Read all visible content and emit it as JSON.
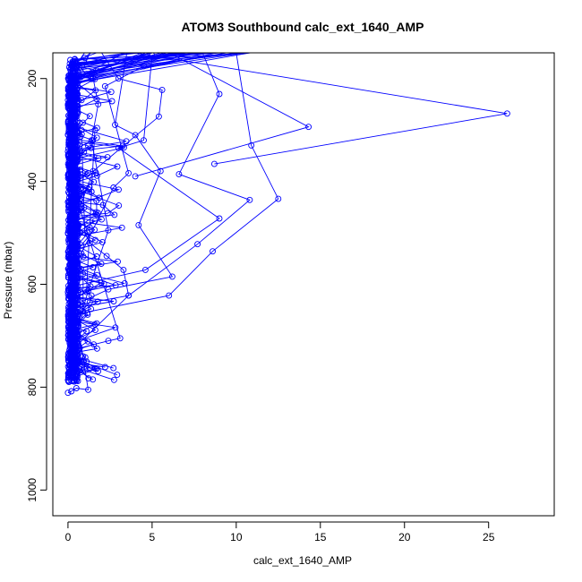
{
  "chart_data": {
    "type": "line",
    "title": "ATOM3 Southbound calc_ext_1640_AMP",
    "xlabel": "calc_ext_1640_AMP",
    "ylabel": "Pressure (mbar)",
    "xlim": [
      -0.9,
      28.9
    ],
    "ylim": [
      1050,
      150
    ],
    "y_inverted": true,
    "x_ticks": [
      0,
      5,
      10,
      15,
      20,
      25
    ],
    "y_ticks": [
      200,
      400,
      600,
      800,
      1000
    ],
    "grid": false,
    "legend": "none",
    "color": "#0000ff",
    "marker": "open-circle",
    "highlight_profiles": [
      [
        [
          4.0,
          150
        ],
        [
          26.1,
          268
        ],
        [
          8.7,
          366
        ]
      ],
      [
        [
          6.0,
          150
        ],
        [
          14.3,
          294
        ],
        [
          4.0,
          390
        ]
      ],
      [
        [
          10.0,
          150
        ],
        [
          10.9,
          330
        ],
        [
          12.5,
          434
        ],
        [
          8.6,
          536
        ],
        [
          6.0,
          622
        ],
        [
          0.2,
          660
        ]
      ],
      [
        [
          2.0,
          150
        ],
        [
          3.0,
          200
        ],
        [
          5.6,
          222
        ],
        [
          5.4,
          274
        ],
        [
          1.5,
          380
        ],
        [
          0.6,
          460
        ]
      ],
      [
        [
          8.0,
          150
        ],
        [
          9.0,
          230
        ],
        [
          6.6,
          386
        ],
        [
          10.8,
          436
        ],
        [
          7.7,
          522
        ],
        [
          3.6,
          622
        ],
        [
          0.5,
          720
        ]
      ],
      [
        [
          1.0,
          160
        ],
        [
          4.5,
          176
        ],
        [
          2.2,
          215
        ],
        [
          3.6,
          384
        ],
        [
          2.7,
          412
        ],
        [
          0.8,
          540
        ]
      ],
      [
        [
          5.0,
          155
        ],
        [
          4.5,
          320
        ],
        [
          3.0,
          335
        ],
        [
          9.0,
          472
        ],
        [
          4.6,
          572
        ],
        [
          0.3,
          604
        ]
      ],
      [
        [
          3.5,
          150
        ],
        [
          2.8,
          290
        ],
        [
          4.0,
          310
        ],
        [
          5.5,
          380
        ],
        [
          4.2,
          485
        ],
        [
          6.2,
          585
        ],
        [
          2.4,
          610
        ],
        [
          0.4,
          640
        ]
      ],
      [
        [
          1.5,
          200
        ],
        [
          1.8,
          250
        ],
        [
          1.4,
          320
        ],
        [
          2.4,
          495
        ],
        [
          1.2,
          613
        ],
        [
          0.4,
          702
        ]
      ],
      [
        [
          0.8,
          300
        ],
        [
          1.0,
          500
        ],
        [
          1.3,
          520
        ],
        [
          2.3,
          545
        ],
        [
          3.3,
          572
        ],
        [
          3.6,
          622
        ],
        [
          0.6,
          640
        ]
      ],
      [
        [
          0.4,
          420
        ],
        [
          3.1,
          705
        ],
        [
          2.4,
          710
        ],
        [
          0.7,
          724
        ],
        [
          1.1,
          750
        ],
        [
          0.3,
          760
        ]
      ],
      [
        [
          0.2,
          600
        ],
        [
          1.2,
          805
        ],
        [
          0.5,
          802
        ],
        [
          0.2,
          808
        ],
        [
          0.0,
          811
        ]
      ],
      [
        [
          0.5,
          350
        ],
        [
          0.7,
          438
        ],
        [
          0.4,
          465
        ],
        [
          0.6,
          500
        ],
        [
          1.2,
          500
        ],
        [
          0.4,
          530
        ]
      ],
      [
        [
          1.6,
          300
        ],
        [
          1.4,
          420
        ],
        [
          1.1,
          615
        ],
        [
          1.4,
          622
        ],
        [
          1.3,
          635
        ],
        [
          0.6,
          660
        ],
        [
          0.4,
          690
        ]
      ],
      [
        [
          0.3,
          520
        ],
        [
          0.9,
          580
        ],
        [
          0.9,
          653
        ],
        [
          0.6,
          700
        ],
        [
          0.9,
          740
        ],
        [
          0.5,
          765
        ],
        [
          0.6,
          770
        ],
        [
          0.2,
          770
        ]
      ]
    ]
  }
}
